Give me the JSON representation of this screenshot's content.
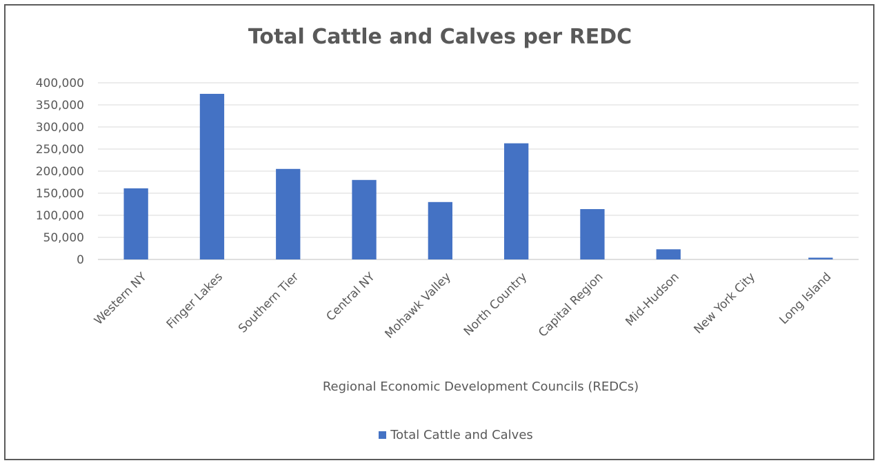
{
  "chart_data": {
    "type": "bar",
    "title": "Total Cattle and Calves per REDC",
    "xlabel": "Regional Economic Development Councils (REDCs)",
    "ylabel": "",
    "categories": [
      "Western NY",
      "Finger Lakes",
      "Southern Tier",
      "Central NY",
      "Mohawk Valley",
      "North Country",
      "Capital Region",
      "Mid-Hudson",
      "New York City",
      "Long Island"
    ],
    "series": [
      {
        "name": "Total Cattle and Calves",
        "values": [
          161000,
          375000,
          205000,
          180000,
          130000,
          263000,
          114000,
          23000,
          0,
          4000
        ]
      }
    ],
    "ylim": [
      0,
      400000
    ],
    "yticks": [
      0,
      50000,
      100000,
      150000,
      200000,
      250000,
      300000,
      350000,
      400000
    ],
    "ytick_labels": [
      "0",
      "50,000",
      "100,000",
      "150,000",
      "200,000",
      "250,000",
      "300,000",
      "350,000",
      "400,000"
    ],
    "grid": true,
    "legend_position": "bottom",
    "colors": {
      "bar": "#4472C4",
      "grid": "#D9D9D9",
      "text": "#595959"
    }
  }
}
